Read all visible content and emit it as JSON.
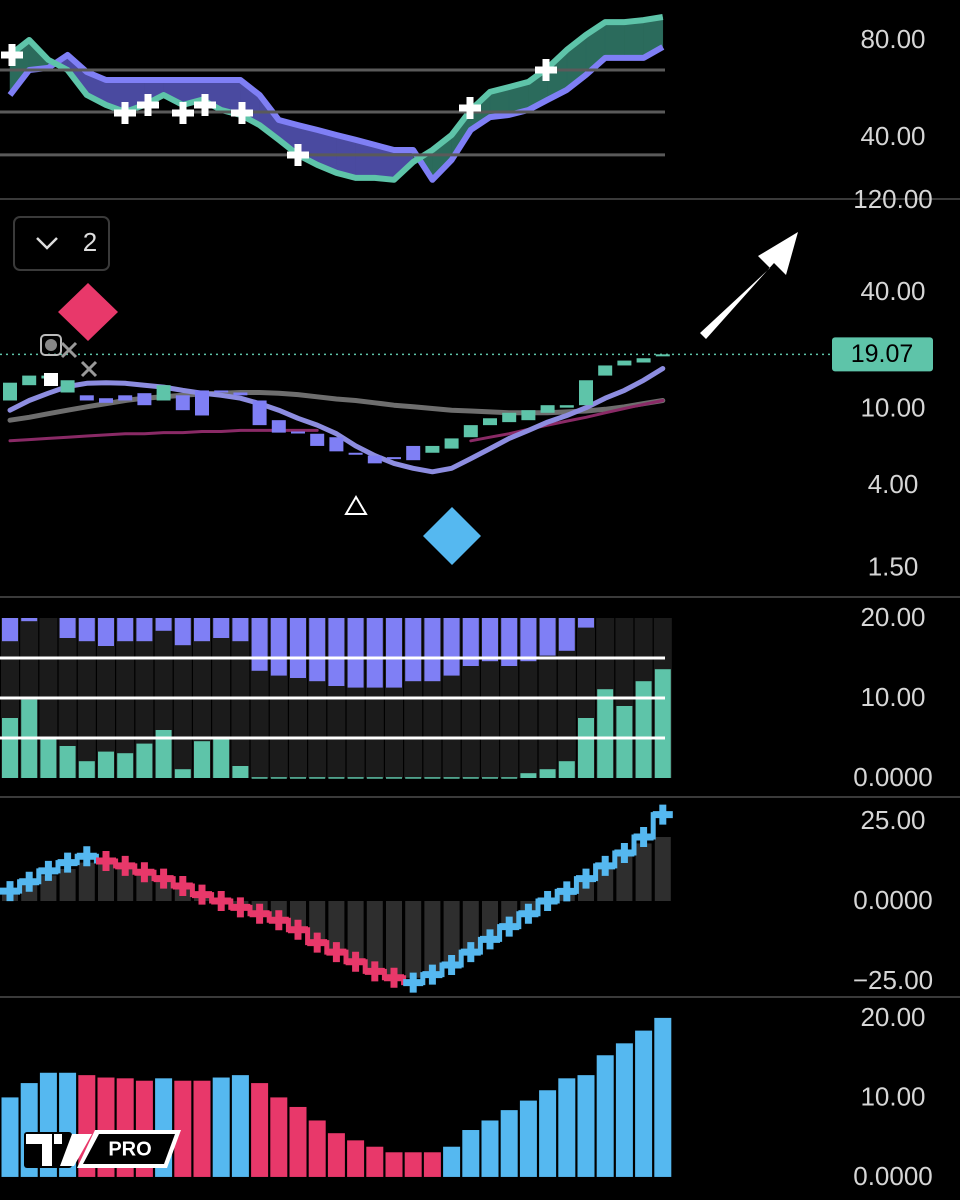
{
  "ui": {
    "layers_count": "2",
    "logo": "PRO"
  },
  "chart_data": [
    {
      "type": "line",
      "ylim": [
        14.8,
        96.5
      ],
      "yticks": [
        {
          "value": 80,
          "label": "80.00"
        },
        {
          "value": 40,
          "label": "40.00"
        }
      ],
      "hlines": [
        67.6,
        50.3,
        32.6
      ],
      "hline_color": "#5a5a5a",
      "fill_colors": [
        "#2b6b5c",
        "#4a4aa0"
      ],
      "series": [
        {
          "color": "#5ec4a9",
          "values": [
            73.8,
            80,
            71.8,
            67.6,
            57.3,
            53.2,
            50.3,
            53.2,
            57.3,
            53.2,
            55.3,
            51.1,
            49.1,
            44.9,
            38.8,
            32.6,
            28.5,
            25.2,
            23.1,
            23.1,
            22.3,
            29.7,
            34.6,
            40.8,
            51.1,
            58.6,
            60.6,
            62.7,
            68.5,
            75.9,
            82.1,
            87.4,
            87.4,
            88.2,
            89.5
          ]
        },
        {
          "color": "#7f7ff5",
          "values": [
            57.3,
            67.6,
            68.5,
            73.8,
            66.8,
            63.5,
            63.5,
            63.5,
            63.5,
            63.5,
            63.5,
            63.5,
            63.5,
            57.3,
            47.0,
            44.9,
            42.9,
            40.8,
            38.8,
            36.7,
            34.6,
            34.6,
            22.3,
            30.5,
            42.9,
            48.2,
            49.1,
            51.1,
            55.3,
            59.4,
            65.6,
            72.6,
            72.6,
            72.6,
            77.1
          ]
        }
      ]
    },
    {
      "type": "candlestick",
      "log_scale": true,
      "ylim": [
        1.07,
        120
      ],
      "yticks": [
        {
          "value": 120,
          "label": "120.00"
        },
        {
          "value": 40,
          "label": "40.00"
        },
        {
          "value": 10,
          "label": "10.00"
        },
        {
          "value": 4,
          "label": "4.00"
        },
        {
          "value": 1.5,
          "label": "1.50"
        }
      ],
      "open": [
        11.0,
        13.2,
        14.3,
        12.1,
        11.7,
        11.3,
        11.7,
        12.0,
        11.0,
        11.7,
        12.4,
        12.4,
        12.1,
        11.0,
        8.7,
        7.6,
        7.4,
        7.1,
        5.9,
        5.7,
        5.6,
        6.4,
        5.9,
        6.2,
        7.1,
        8.2,
        8.5,
        8.7,
        9.5,
        10.1,
        10.4,
        14.8,
        16.7,
        17.3,
        18.8
      ],
      "close": [
        13.6,
        14.8,
        14.8,
        14.0,
        11.0,
        10.7,
        11.0,
        10.4,
        13.2,
        9.8,
        9.2,
        12.1,
        11.7,
        8.2,
        7.5,
        7.5,
        6.4,
        6.0,
        5.8,
        5.2,
        5.5,
        5.4,
        6.4,
        7.0,
        8.2,
        8.9,
        9.5,
        9.8,
        10.4,
        10.4,
        14.0,
        16.7,
        17.7,
        18.2,
        19.07
      ],
      "up_color": "#5ec4a9",
      "down_color": "#7f7ff5",
      "series": [
        {
          "color": "#6e6e6e",
          "values": [
            8.7,
            9.0,
            9.4,
            9.8,
            10.2,
            10.6,
            11.0,
            11.3,
            11.5,
            11.7,
            11.9,
            12.0,
            12.1,
            12.1,
            12.0,
            11.8,
            11.5,
            11.2,
            11.0,
            10.7,
            10.4,
            10.2,
            10.0,
            9.8,
            9.7,
            9.6,
            9.5,
            9.5,
            9.5,
            9.6,
            9.7,
            9.9,
            10.2,
            10.6,
            11.0
          ]
        },
        {
          "color": "#8a2a66",
          "values": [
            6.8,
            6.9,
            7.0,
            7.1,
            7.2,
            7.3,
            7.4,
            7.4,
            7.5,
            7.5,
            7.6,
            7.6,
            7.7,
            7.7,
            7.7,
            7.7,
            7.7,
            null,
            null,
            null,
            null,
            null,
            null,
            null,
            6.8,
            7.1,
            7.4,
            7.8,
            8.2,
            8.6,
            9.0,
            9.5,
            10.0,
            10.5,
            11.0
          ]
        },
        {
          "color": "#8d8de0",
          "values": [
            9.8,
            11.0,
            12.0,
            13.0,
            13.5,
            13.6,
            13.5,
            13.2,
            12.9,
            12.4,
            12.0,
            11.7,
            11.3,
            10.6,
            9.8,
            8.9,
            8.2,
            7.4,
            6.4,
            5.7,
            5.2,
            4.9,
            4.7,
            4.9,
            5.5,
            6.2,
            7.0,
            7.7,
            8.5,
            9.2,
            10.1,
            11.3,
            12.4,
            14.0,
            16.1
          ]
        }
      ],
      "last_price": 19.07,
      "last_price_color": "#5ec4a9"
    },
    {
      "type": "histogram",
      "ylim": [
        -2.25,
        22.5
      ],
      "yticks": [
        {
          "value": 20,
          "label": "20.00"
        },
        {
          "value": 10,
          "label": "10.00"
        },
        {
          "value": 0,
          "label": "0.0000"
        }
      ],
      "hlines": [
        15,
        10,
        5
      ],
      "hline_color": "#ffffff",
      "series": [
        {
          "color": "#5ec4a9",
          "base": 0,
          "values": [
            7.5,
            9.8,
            5.0,
            4.0,
            2.1,
            3.3,
            3.1,
            4.3,
            6.0,
            1.1,
            4.6,
            4.9,
            1.5,
            0.1,
            0.1,
            0.1,
            0.1,
            0.1,
            0.1,
            0.1,
            0.1,
            0.1,
            0.1,
            0.1,
            0.1,
            0.1,
            0.1,
            0.6,
            1.1,
            2.1,
            7.5,
            11.1,
            9.0,
            12.1,
            13.6
          ]
        },
        {
          "color": "#7f7ff5",
          "base": 20,
          "values": [
            17.1,
            19.6,
            null,
            17.5,
            17.1,
            16.5,
            17.1,
            17.1,
            18.4,
            16.6,
            17.1,
            17.5,
            17.1,
            13.4,
            12.8,
            12.5,
            12.1,
            11.5,
            11.3,
            11.3,
            11.3,
            12.1,
            12.1,
            12.8,
            14.0,
            14.6,
            14.0,
            14.6,
            15.3,
            15.9,
            18.8,
            null,
            null,
            null,
            null
          ]
        }
      ]
    },
    {
      "type": "step",
      "ylim": [
        -29.7,
        32.2
      ],
      "yticks": [
        {
          "value": 25,
          "label": "25.00"
        },
        {
          "value": 0,
          "label": "0.0000"
        },
        {
          "value": -25,
          "label": "−25.00"
        }
      ],
      "histogram": [
        2,
        5,
        8,
        10,
        12,
        12,
        10,
        8,
        6,
        4,
        2,
        0,
        -2,
        -4,
        -6,
        -8,
        -12,
        -15,
        -18,
        -21,
        -23,
        -24,
        -22,
        -19,
        -15,
        -11,
        -7,
        -3,
        1,
        3,
        6,
        10,
        14,
        18,
        20
      ],
      "histogram_color": "#2e2e2e",
      "values": [
        3.1,
        6,
        9.4,
        12,
        14,
        12.5,
        11,
        9,
        7,
        4.7,
        2,
        0,
        -2,
        -4,
        -6,
        -9,
        -13,
        -16,
        -19,
        -22,
        -24,
        -25.5,
        -23,
        -20,
        -16,
        -12,
        -8,
        -4,
        0,
        3,
        7,
        11,
        15,
        20,
        27
      ],
      "colors": [
        "#55b8f0",
        "#55b8f0",
        "#55b8f0",
        "#55b8f0",
        "#55b8f0",
        "#e8386a",
        "#e8386a",
        "#e8386a",
        "#e8386a",
        "#e8386a",
        "#e8386a",
        "#e8386a",
        "#e8386a",
        "#e8386a",
        "#e8386a",
        "#e8386a",
        "#e8386a",
        "#e8386a",
        "#e8386a",
        "#e8386a",
        "#e8386a",
        "#55b8f0",
        "#55b8f0",
        "#55b8f0",
        "#55b8f0",
        "#55b8f0",
        "#55b8f0",
        "#55b8f0",
        "#55b8f0",
        "#55b8f0",
        "#55b8f0",
        "#55b8f0",
        "#55b8f0",
        "#55b8f0",
        "#55b8f0"
      ]
    },
    {
      "type": "bar",
      "ylim": [
        -2.9,
        22.5
      ],
      "yticks": [
        {
          "value": 20,
          "label": "20.00"
        },
        {
          "value": 10,
          "label": "10.00"
        },
        {
          "value": 0,
          "label": "0.0000"
        }
      ],
      "values": [
        10,
        11.8,
        13.1,
        13.1,
        12.8,
        12.5,
        12.4,
        12.1,
        12.4,
        12.1,
        12.1,
        12.5,
        12.8,
        11.8,
        10,
        8.8,
        7.1,
        5.5,
        4.6,
        3.8,
        3.1,
        3.1,
        3.1,
        3.8,
        5.9,
        7.1,
        8.4,
        9.6,
        10.9,
        12.4,
        12.8,
        15.3,
        16.8,
        18.4,
        20
      ],
      "colors": [
        "#55b8f0",
        "#55b8f0",
        "#55b8f0",
        "#55b8f0",
        "#e8386a",
        "#e8386a",
        "#e8386a",
        "#e8386a",
        "#55b8f0",
        "#e8386a",
        "#e8386a",
        "#55b8f0",
        "#55b8f0",
        "#e8386a",
        "#e8386a",
        "#e8386a",
        "#e8386a",
        "#e8386a",
        "#e8386a",
        "#e8386a",
        "#e8386a",
        "#e8386a",
        "#e8386a",
        "#55b8f0",
        "#55b8f0",
        "#55b8f0",
        "#55b8f0",
        "#55b8f0",
        "#55b8f0",
        "#55b8f0",
        "#55b8f0",
        "#55b8f0",
        "#55b8f0",
        "#55b8f0",
        "#55b8f0"
      ]
    }
  ]
}
